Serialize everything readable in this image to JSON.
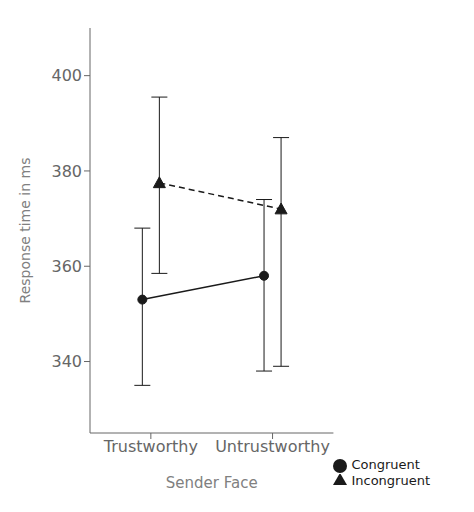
{
  "chart_data": {
    "type": "line",
    "categories": [
      "Trustworthy",
      "Untrustworthy"
    ],
    "x_label": "Sender Face",
    "y_label": "Response time in ms",
    "ylim": [
      325,
      410
    ],
    "yticks": [
      340,
      360,
      380,
      400
    ],
    "legend": "lower right",
    "grid": false,
    "series": [
      {
        "name": "Incongruent",
        "color": "#1a1a1a",
        "marker": "triangle",
        "line_style": "dashed",
        "values": [
          377.5,
          372.0
        ],
        "yerr_upper": [
          18,
          15
        ],
        "yerr_lower": [
          19,
          33
        ]
      },
      {
        "name": "Congruent",
        "color": "#1a1a1a",
        "marker": "circle",
        "line_style": "solid",
        "values": [
          353.0,
          358.0
        ],
        "yerr_upper": [
          15,
          16
        ],
        "yerr_lower": [
          18,
          20
        ]
      }
    ]
  }
}
